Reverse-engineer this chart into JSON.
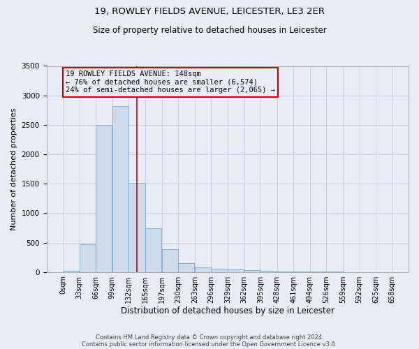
{
  "title": "19, ROWLEY FIELDS AVENUE, LEICESTER, LE3 2ER",
  "subtitle": "Size of property relative to detached houses in Leicester",
  "xlabel": "Distribution of detached houses by size in Leicester",
  "ylabel": "Number of detached properties",
  "footnote1": "Contains HM Land Registry data © Crown copyright and database right 2024.",
  "footnote2": "Contains public sector information licensed under the Open Government Licence v3.0.",
  "bar_color": "#ccdaec",
  "bar_edge_color": "#7aaac8",
  "background_color": "#e8edf5",
  "bin_labels": [
    "0sqm",
    "33sqm",
    "66sqm",
    "99sqm",
    "132sqm",
    "165sqm",
    "197sqm",
    "230sqm",
    "263sqm",
    "296sqm",
    "329sqm",
    "362sqm",
    "395sqm",
    "428sqm",
    "461sqm",
    "494sqm",
    "526sqm",
    "559sqm",
    "592sqm",
    "625sqm",
    "658sqm"
  ],
  "bar_values": [
    20,
    470,
    2500,
    2820,
    1510,
    740,
    390,
    155,
    80,
    55,
    45,
    30,
    15,
    10,
    5,
    5,
    3,
    2,
    1,
    1
  ],
  "property_size": 148,
  "bin_width": 33,
  "property_label_line1": "19 ROWLEY FIELDS AVENUE: 148sqm",
  "property_label_line2": "← 76% of detached houses are smaller (6,574)",
  "property_label_line3": "24% of semi-detached houses are larger (2,065) →",
  "annotation_box_color": "#cc0000",
  "vertical_line_color": "#cc0000",
  "ylim": [
    0,
    3500
  ],
  "yticks": [
    0,
    500,
    1000,
    1500,
    2000,
    2500,
    3000,
    3500
  ],
  "grid_color": "#c8d4e4",
  "title_fontsize": 9.5,
  "subtitle_fontsize": 8.5,
  "ylabel_fontsize": 8,
  "xlabel_fontsize": 8.5,
  "tick_fontsize": 7,
  "annotation_fontsize": 7.5,
  "footnote_fontsize": 6
}
